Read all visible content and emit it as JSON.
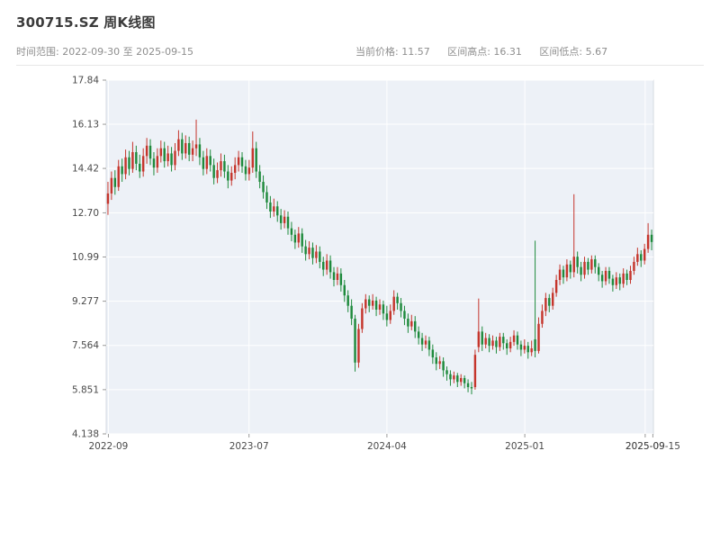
{
  "header": {
    "title": "300715.SZ 周K线图",
    "time_range": "时间范围: 2022-09-30 至 2025-09-15",
    "current_price": "当前价格: 11.57",
    "range_high": "区间高点: 16.31",
    "range_low": "区间低点: 5.67"
  },
  "chart_data": {
    "type": "candlestick",
    "title": "300715.SZ 周K线图",
    "symbol": "300715.SZ",
    "interval": "weekly",
    "xlabel": "",
    "ylabel": "",
    "grid": true,
    "y_range": [
      4.138,
      17.84
    ],
    "y_ticks": [
      {
        "v": 17.84,
        "label": "17.84"
      },
      {
        "v": 16.13,
        "label": "16.13"
      },
      {
        "v": 14.42,
        "label": "14.42"
      },
      {
        "v": 12.7,
        "label": "12.70"
      },
      {
        "v": 10.99,
        "label": "10.99"
      },
      {
        "v": 9.277,
        "label": "9.277"
      },
      {
        "v": 7.564,
        "label": "7.564"
      },
      {
        "v": 5.851,
        "label": "5.851"
      },
      {
        "v": 4.138,
        "label": "4.138"
      }
    ],
    "x_ticks": [
      {
        "t": 0.004,
        "label": "2022-09"
      },
      {
        "t": 0.261,
        "label": "2023-07"
      },
      {
        "t": 0.513,
        "label": "2024-04"
      },
      {
        "t": 0.765,
        "label": "2025-01"
      },
      {
        "t": 0.985,
        "label": "2025-09"
      },
      {
        "t": 0.999,
        "label": "2025-09-15"
      }
    ],
    "colors": {
      "up": "#c5352c",
      "down": "#1e8a3c",
      "plot_bg": "#edf1f7",
      "grid": "#ffffff",
      "spine": "#d5dae0",
      "axis_text": "#4a4a4a",
      "title_text": "#3b3b3b",
      "subtitle_text": "#8e8e8e"
    },
    "ohlc_columns": [
      "date",
      "open",
      "high",
      "low",
      "close"
    ],
    "ohlc": [
      [
        "2022-09-30",
        13.05,
        13.9,
        12.62,
        13.45
      ],
      [
        "2022-10-07",
        13.45,
        14.3,
        13.2,
        14.05
      ],
      [
        "2022-10-14",
        14.05,
        14.35,
        13.4,
        13.7
      ],
      [
        "2022-10-21",
        13.7,
        14.75,
        13.55,
        14.5
      ],
      [
        "2022-10-28",
        14.5,
        14.8,
        13.9,
        14.2
      ],
      [
        "2022-11-04",
        14.2,
        15.15,
        14.0,
        14.85
      ],
      [
        "2022-11-11",
        14.85,
        15.1,
        14.15,
        14.4
      ],
      [
        "2022-11-18",
        14.4,
        15.45,
        14.25,
        15.05
      ],
      [
        "2022-11-25",
        15.05,
        15.3,
        14.35,
        14.6
      ],
      [
        "2022-12-02",
        14.6,
        14.95,
        14.05,
        14.3
      ],
      [
        "2022-12-09",
        14.3,
        15.2,
        14.1,
        14.9
      ],
      [
        "2022-12-16",
        14.9,
        15.6,
        14.6,
        15.3
      ],
      [
        "2022-12-23",
        15.3,
        15.55,
        14.55,
        14.8
      ],
      [
        "2022-12-30",
        14.8,
        15.05,
        14.15,
        14.45
      ],
      [
        "2023-01-06",
        14.45,
        15.2,
        14.25,
        14.9
      ],
      [
        "2023-01-13",
        14.9,
        15.5,
        14.65,
        15.2
      ],
      [
        "2023-01-20",
        15.2,
        15.45,
        14.45,
        14.7
      ],
      [
        "2023-01-27",
        14.7,
        15.3,
        14.5,
        15.0
      ],
      [
        "2023-02-03",
        15.0,
        15.25,
        14.3,
        14.55
      ],
      [
        "2023-02-10",
        14.55,
        15.4,
        14.35,
        15.1
      ],
      [
        "2023-02-17",
        15.1,
        15.9,
        14.9,
        15.55
      ],
      [
        "2023-02-24",
        15.55,
        15.8,
        14.75,
        15.0
      ],
      [
        "2023-03-03",
        15.0,
        15.7,
        14.8,
        15.4
      ],
      [
        "2023-03-10",
        15.4,
        15.65,
        14.7,
        14.95
      ],
      [
        "2023-03-17",
        14.95,
        15.5,
        14.7,
        15.2
      ],
      [
        "2023-03-24",
        15.2,
        16.31,
        14.9,
        15.35
      ],
      [
        "2023-03-31",
        15.35,
        15.6,
        14.55,
        14.85
      ],
      [
        "2023-04-07",
        14.85,
        15.1,
        14.15,
        14.4
      ],
      [
        "2023-04-14",
        14.4,
        15.2,
        14.2,
        14.9
      ],
      [
        "2023-04-21",
        14.9,
        15.15,
        14.3,
        14.55
      ],
      [
        "2023-04-28",
        14.55,
        14.8,
        13.8,
        14.05
      ],
      [
        "2023-05-05",
        14.05,
        14.65,
        13.85,
        14.35
      ],
      [
        "2023-05-12",
        14.35,
        15.0,
        14.1,
        14.7
      ],
      [
        "2023-05-19",
        14.7,
        14.95,
        14.05,
        14.3
      ],
      [
        "2023-05-26",
        14.3,
        14.55,
        13.65,
        13.95
      ],
      [
        "2023-06-02",
        13.95,
        14.5,
        13.75,
        14.25
      ],
      [
        "2023-06-09",
        14.25,
        14.85,
        14.0,
        14.55
      ],
      [
        "2023-06-16",
        14.55,
        15.1,
        14.3,
        14.85
      ],
      [
        "2023-06-23",
        14.85,
        15.05,
        14.25,
        14.5
      ],
      [
        "2023-06-30",
        14.5,
        14.75,
        13.95,
        14.2
      ],
      [
        "2023-07-07",
        14.2,
        14.75,
        13.95,
        14.45
      ],
      [
        "2023-07-14",
        14.45,
        15.85,
        14.25,
        15.2
      ],
      [
        "2023-07-21",
        15.2,
        15.45,
        14.05,
        14.3
      ],
      [
        "2023-07-28",
        14.3,
        14.55,
        13.65,
        13.9
      ],
      [
        "2023-08-04",
        13.9,
        14.15,
        13.25,
        13.5
      ],
      [
        "2023-08-11",
        13.5,
        13.75,
        12.85,
        13.1
      ],
      [
        "2023-08-18",
        13.1,
        13.35,
        12.5,
        12.75
      ],
      [
        "2023-08-25",
        12.75,
        13.25,
        12.55,
        12.95
      ],
      [
        "2023-09-01",
        12.95,
        13.15,
        12.35,
        12.6
      ],
      [
        "2023-09-08",
        12.6,
        12.85,
        12.05,
        12.3
      ],
      [
        "2023-09-15",
        12.3,
        12.8,
        12.1,
        12.55
      ],
      [
        "2023-09-22",
        12.55,
        12.75,
        11.85,
        12.1
      ],
      [
        "2023-09-29",
        12.1,
        12.35,
        11.6,
        11.85
      ],
      [
        "2023-10-06",
        11.85,
        12.05,
        11.3,
        11.55
      ],
      [
        "2023-10-13",
        11.55,
        12.15,
        11.35,
        11.9
      ],
      [
        "2023-10-20",
        11.9,
        12.1,
        11.15,
        11.4
      ],
      [
        "2023-10-27",
        11.4,
        11.65,
        10.85,
        11.1
      ],
      [
        "2023-11-03",
        11.1,
        11.6,
        10.9,
        11.35
      ],
      [
        "2023-11-10",
        11.35,
        11.55,
        10.7,
        10.95
      ],
      [
        "2023-11-17",
        10.95,
        11.45,
        10.75,
        11.2
      ],
      [
        "2023-11-24",
        11.2,
        11.4,
        10.55,
        10.8
      ],
      [
        "2023-12-01",
        10.8,
        11.0,
        10.25,
        10.5
      ],
      [
        "2023-12-08",
        10.5,
        11.1,
        10.3,
        10.85
      ],
      [
        "2023-12-15",
        10.85,
        11.05,
        10.15,
        10.4
      ],
      [
        "2023-12-22",
        10.4,
        10.6,
        9.85,
        10.1
      ],
      [
        "2023-12-29",
        10.1,
        10.6,
        9.9,
        10.35
      ],
      [
        "2024-01-05",
        10.35,
        10.55,
        9.65,
        9.9
      ],
      [
        "2024-01-12",
        9.9,
        10.1,
        9.25,
        9.5
      ],
      [
        "2024-01-19",
        9.5,
        9.7,
        8.85,
        9.1
      ],
      [
        "2024-01-26",
        9.1,
        9.35,
        8.35,
        8.6
      ],
      [
        "2024-02-02",
        8.6,
        8.75,
        6.55,
        6.9
      ],
      [
        "2024-02-09",
        6.9,
        8.4,
        6.7,
        8.2
      ],
      [
        "2024-02-16",
        8.2,
        9.2,
        8.05,
        9.0
      ],
      [
        "2024-02-23",
        9.0,
        9.55,
        8.8,
        9.35
      ],
      [
        "2024-03-01",
        9.35,
        9.5,
        8.85,
        9.1
      ],
      [
        "2024-03-08",
        9.1,
        9.55,
        8.95,
        9.3
      ],
      [
        "2024-03-15",
        9.3,
        9.45,
        8.7,
        8.95
      ],
      [
        "2024-03-22",
        8.95,
        9.35,
        8.75,
        9.15
      ],
      [
        "2024-03-29",
        9.15,
        9.3,
        8.55,
        8.8
      ],
      [
        "2024-04-05",
        8.8,
        9.1,
        8.3,
        8.55
      ],
      [
        "2024-04-12",
        8.55,
        9.15,
        8.4,
        8.9
      ],
      [
        "2024-04-19",
        8.9,
        9.7,
        8.75,
        9.45
      ],
      [
        "2024-04-26",
        9.45,
        9.6,
        8.95,
        9.2
      ],
      [
        "2024-05-03",
        9.2,
        9.4,
        8.65,
        8.9
      ],
      [
        "2024-05-10",
        8.9,
        9.1,
        8.35,
        8.6
      ],
      [
        "2024-05-17",
        8.6,
        8.8,
        8.05,
        8.3
      ],
      [
        "2024-05-24",
        8.3,
        8.75,
        8.15,
        8.5
      ],
      [
        "2024-05-31",
        8.5,
        8.7,
        7.85,
        8.1
      ],
      [
        "2024-06-07",
        8.1,
        8.3,
        7.6,
        7.85
      ],
      [
        "2024-06-14",
        7.85,
        8.05,
        7.35,
        7.6
      ],
      [
        "2024-06-21",
        7.6,
        7.95,
        7.45,
        7.75
      ],
      [
        "2024-06-28",
        7.75,
        7.9,
        7.15,
        7.4
      ],
      [
        "2024-07-05",
        7.4,
        7.6,
        6.85,
        7.1
      ],
      [
        "2024-07-12",
        7.1,
        7.3,
        6.6,
        6.85
      ],
      [
        "2024-07-19",
        6.85,
        7.15,
        6.65,
        6.95
      ],
      [
        "2024-07-26",
        6.95,
        7.1,
        6.35,
        6.6
      ],
      [
        "2024-08-02",
        6.6,
        6.75,
        6.2,
        6.45
      ],
      [
        "2024-08-09",
        6.45,
        6.6,
        6.0,
        6.25
      ],
      [
        "2024-08-16",
        6.25,
        6.55,
        6.1,
        6.4
      ],
      [
        "2024-08-23",
        6.4,
        6.5,
        5.95,
        6.15
      ],
      [
        "2024-08-30",
        6.15,
        6.45,
        6.0,
        6.3
      ],
      [
        "2024-09-06",
        6.3,
        6.4,
        5.9,
        6.1
      ],
      [
        "2024-09-13",
        6.1,
        6.25,
        5.75,
        5.95
      ],
      [
        "2024-09-20",
        5.95,
        6.15,
        5.67,
        5.9
      ],
      [
        "2024-09-27",
        5.95,
        7.4,
        5.85,
        7.2
      ],
      [
        "2024-10-04",
        7.5,
        9.38,
        7.3,
        8.1
      ],
      [
        "2024-10-11",
        8.1,
        8.3,
        7.35,
        7.6
      ],
      [
        "2024-10-18",
        7.6,
        8.05,
        7.45,
        7.85
      ],
      [
        "2024-10-25",
        7.85,
        8.0,
        7.3,
        7.55
      ],
      [
        "2024-11-01",
        7.55,
        7.95,
        7.4,
        7.75
      ],
      [
        "2024-11-08",
        7.75,
        7.9,
        7.25,
        7.5
      ],
      [
        "2024-11-15",
        7.5,
        8.05,
        7.35,
        7.9
      ],
      [
        "2024-11-22",
        7.9,
        8.05,
        7.4,
        7.65
      ],
      [
        "2024-11-29",
        7.65,
        7.8,
        7.2,
        7.45
      ],
      [
        "2024-12-06",
        7.45,
        7.9,
        7.3,
        7.7
      ],
      [
        "2024-12-13",
        7.7,
        8.15,
        7.55,
        7.95
      ],
      [
        "2024-12-20",
        7.95,
        8.1,
        7.4,
        7.6
      ],
      [
        "2024-12-27",
        7.6,
        7.75,
        7.15,
        7.4
      ],
      [
        "2025-01-03",
        7.4,
        7.8,
        7.25,
        7.55
      ],
      [
        "2025-01-10",
        7.55,
        7.7,
        7.05,
        7.3
      ],
      [
        "2025-01-17",
        7.3,
        7.75,
        7.15,
        7.45
      ],
      [
        "2025-01-24",
        7.8,
        11.62,
        7.1,
        7.35
      ],
      [
        "2025-01-31",
        7.35,
        8.65,
        7.25,
        8.4
      ],
      [
        "2025-02-07",
        8.4,
        9.15,
        8.25,
        8.9
      ],
      [
        "2025-02-14",
        8.9,
        9.6,
        8.7,
        9.4
      ],
      [
        "2025-02-21",
        9.4,
        9.55,
        8.85,
        9.1
      ],
      [
        "2025-02-28",
        9.1,
        9.8,
        8.95,
        9.6
      ],
      [
        "2025-03-07",
        9.6,
        10.3,
        9.45,
        10.1
      ],
      [
        "2025-03-14",
        10.1,
        10.7,
        9.9,
        10.5
      ],
      [
        "2025-03-21",
        10.5,
        10.65,
        9.95,
        10.2
      ],
      [
        "2025-03-28",
        10.2,
        10.9,
        10.05,
        10.7
      ],
      [
        "2025-04-04",
        10.7,
        10.85,
        10.15,
        10.4
      ],
      [
        "2025-04-11",
        10.4,
        13.42,
        10.2,
        11.0
      ],
      [
        "2025-04-18",
        11.0,
        11.2,
        10.35,
        10.6
      ],
      [
        "2025-04-25",
        10.6,
        10.8,
        10.05,
        10.3
      ],
      [
        "2025-05-02",
        10.3,
        11.0,
        10.15,
        10.8
      ],
      [
        "2025-05-09",
        10.8,
        10.95,
        10.3,
        10.5
      ],
      [
        "2025-05-16",
        10.5,
        11.05,
        10.35,
        10.9
      ],
      [
        "2025-05-23",
        10.9,
        11.05,
        10.35,
        10.6
      ],
      [
        "2025-05-30",
        10.6,
        10.75,
        10.05,
        10.3
      ],
      [
        "2025-06-06",
        10.3,
        10.45,
        9.8,
        10.05
      ],
      [
        "2025-06-13",
        10.05,
        10.6,
        9.9,
        10.45
      ],
      [
        "2025-06-20",
        10.45,
        10.6,
        9.95,
        10.15
      ],
      [
        "2025-06-27",
        10.15,
        10.3,
        9.65,
        9.9
      ],
      [
        "2025-07-04",
        9.9,
        10.4,
        9.75,
        10.2
      ],
      [
        "2025-07-11",
        10.2,
        10.35,
        9.7,
        9.95
      ],
      [
        "2025-07-18",
        9.95,
        10.55,
        9.8,
        10.35
      ],
      [
        "2025-07-25",
        10.35,
        10.5,
        9.9,
        10.1
      ],
      [
        "2025-08-01",
        10.1,
        10.65,
        9.95,
        10.45
      ],
      [
        "2025-08-08",
        10.45,
        11.0,
        10.3,
        10.8
      ],
      [
        "2025-08-15",
        10.8,
        11.35,
        10.65,
        11.1
      ],
      [
        "2025-08-22",
        11.1,
        11.25,
        10.6,
        10.85
      ],
      [
        "2025-08-29",
        10.85,
        11.5,
        10.7,
        11.3
      ],
      [
        "2025-09-05",
        11.3,
        12.3,
        11.15,
        11.85
      ],
      [
        "2025-09-12",
        11.85,
        12.05,
        11.25,
        11.57
      ]
    ]
  }
}
